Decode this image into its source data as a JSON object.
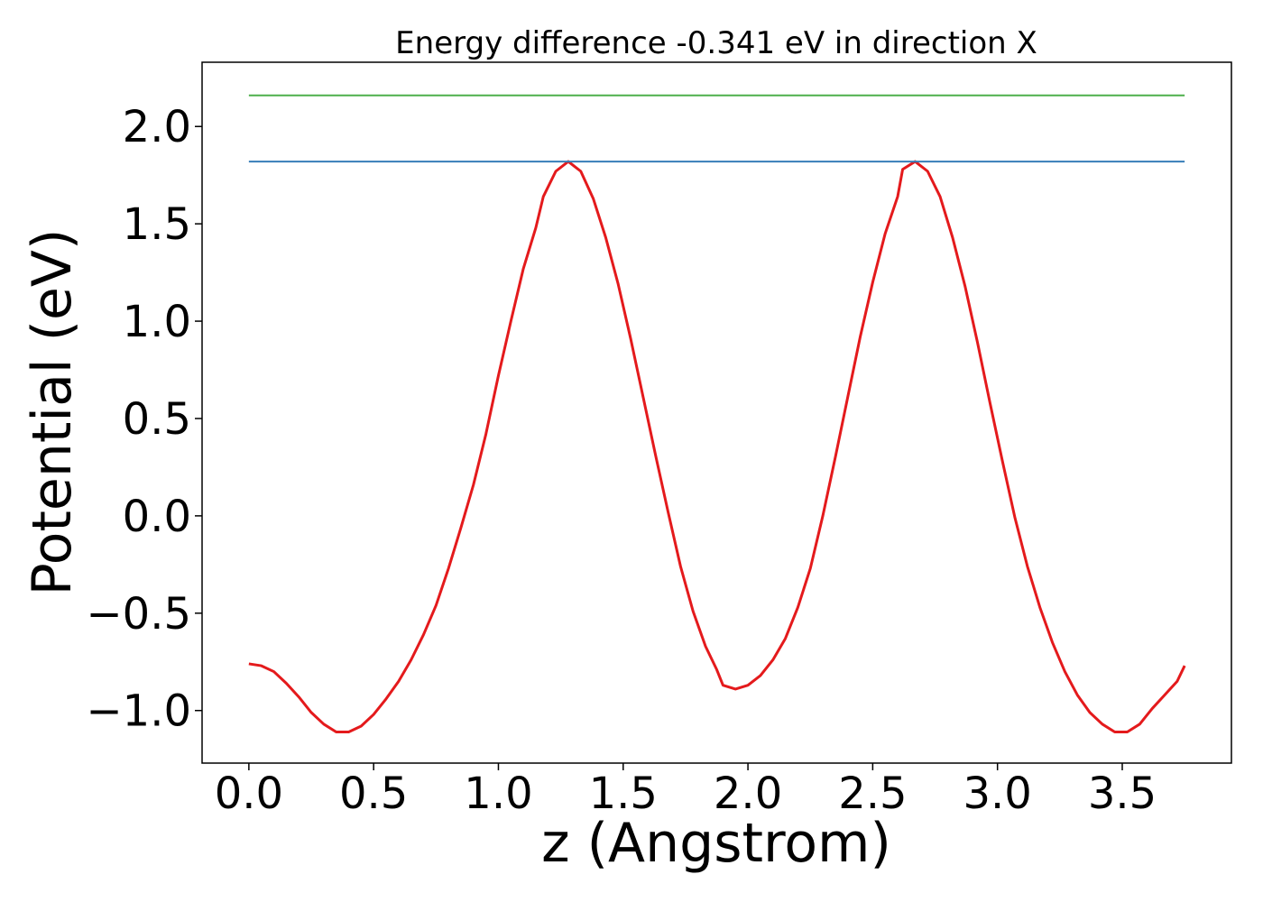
{
  "chart_data": {
    "type": "line",
    "title": "Energy difference -0.341 eV in direction X",
    "xlabel": "z (Angstrom)",
    "ylabel": "Potential (eV)",
    "xlim": [
      -0.1875,
      3.9375
    ],
    "ylim": [
      -1.27,
      2.33
    ],
    "xticks": [
      0.0,
      0.5,
      1.0,
      1.5,
      2.0,
      2.5,
      3.0,
      3.5
    ],
    "xtick_labels": [
      "0.0",
      "0.5",
      "1.0",
      "1.5",
      "2.0",
      "2.5",
      "3.0",
      "3.5"
    ],
    "yticks": [
      -1.0,
      -0.5,
      0.0,
      0.5,
      1.0,
      1.5,
      2.0
    ],
    "ytick_labels": [
      "−1.0",
      "−0.5",
      "0.0",
      "0.5",
      "1.0",
      "1.5",
      "2.0"
    ],
    "grid": false,
    "legend": "none",
    "series": [
      {
        "color": "#e41a1c",
        "x": [
          0.0,
          0.05,
          0.1,
          0.15,
          0.2,
          0.25,
          0.3,
          0.35,
          0.4,
          0.45,
          0.5,
          0.55,
          0.6,
          0.65,
          0.7,
          0.75,
          0.8,
          0.85,
          0.9,
          0.95,
          1.0,
          1.05,
          1.1,
          1.15,
          1.18,
          1.23,
          1.28,
          1.33,
          1.38,
          1.43,
          1.48,
          1.53,
          1.58,
          1.63,
          1.68,
          1.73,
          1.78,
          1.83,
          1.875,
          1.9,
          1.95,
          2.0,
          2.05,
          2.1,
          2.15,
          2.2,
          2.25,
          2.3,
          2.35,
          2.4,
          2.45,
          2.5,
          2.55,
          2.6,
          2.62,
          2.67,
          2.72,
          2.77,
          2.82,
          2.87,
          2.92,
          2.97,
          3.02,
          3.07,
          3.12,
          3.17,
          3.22,
          3.27,
          3.32,
          3.37,
          3.42,
          3.47,
          3.52,
          3.57,
          3.62,
          3.67,
          3.72,
          3.75
        ],
        "y": [
          -0.76,
          -0.77,
          -0.8,
          -0.86,
          -0.93,
          -1.01,
          -1.07,
          -1.11,
          -1.11,
          -1.08,
          -1.02,
          -0.94,
          -0.85,
          -0.74,
          -0.61,
          -0.46,
          -0.27,
          -0.06,
          0.16,
          0.42,
          0.72,
          1.0,
          1.27,
          1.48,
          1.64,
          1.77,
          1.82,
          1.77,
          1.63,
          1.43,
          1.19,
          0.91,
          0.61,
          0.31,
          0.02,
          -0.26,
          -0.49,
          -0.67,
          -0.79,
          -0.87,
          -0.89,
          -0.87,
          -0.82,
          -0.74,
          -0.63,
          -0.47,
          -0.27,
          0.0,
          0.3,
          0.61,
          0.92,
          1.2,
          1.45,
          1.64,
          1.78,
          1.82,
          1.77,
          1.64,
          1.43,
          1.18,
          0.89,
          0.58,
          0.28,
          -0.01,
          -0.26,
          -0.47,
          -0.65,
          -0.8,
          -0.92,
          -1.01,
          -1.07,
          -1.11,
          -1.11,
          -1.07,
          -0.99,
          -0.92,
          -0.85,
          -0.77
        ]
      },
      {
        "color": "#377eb8",
        "x": [
          0.0,
          3.75
        ],
        "y": [
          1.82,
          1.82
        ]
      },
      {
        "color": "#4daf4a",
        "x": [
          0.0,
          3.75
        ],
        "y": [
          2.16,
          2.16
        ]
      }
    ]
  }
}
